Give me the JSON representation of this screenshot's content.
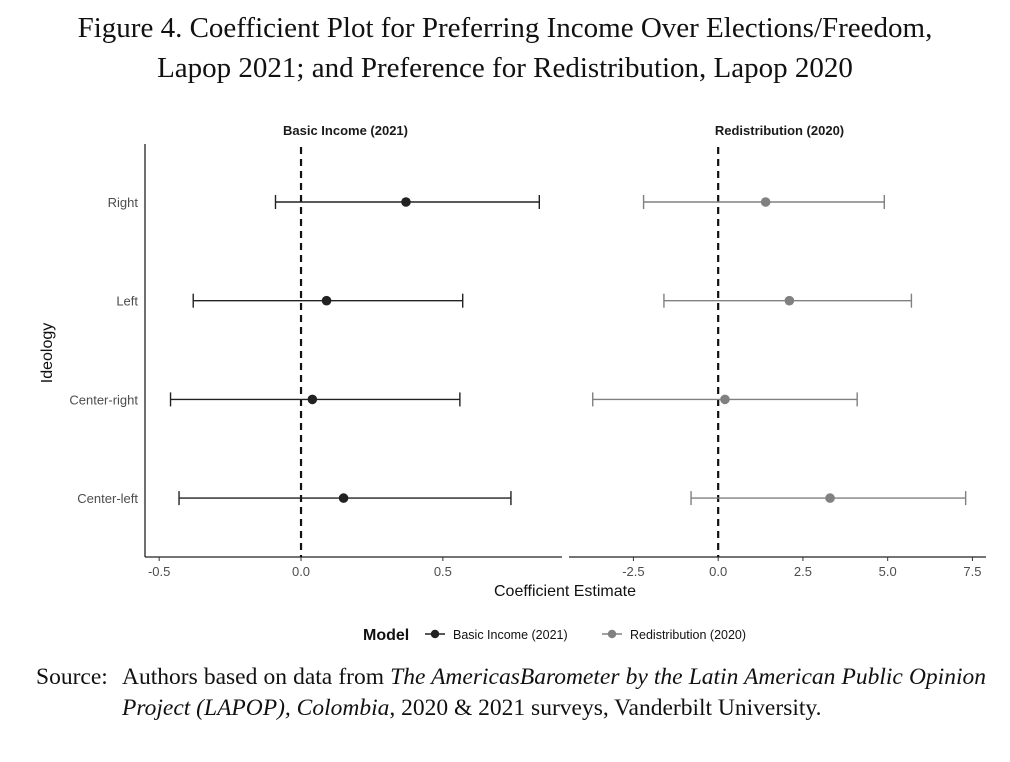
{
  "figure": {
    "title_line1": "Figure 4. Coefficient Plot for Preferring Income Over Elections/Freedom,",
    "title_line2": "Lapop 2021; and Preference for Redistribution, Lapop 2020"
  },
  "chart_data": {
    "type": "scatter",
    "subtype": "coefficient-plot",
    "xlabel": "Coefficient Estimate",
    "ylabel": "Ideology",
    "categories": [
      "Right",
      "Left",
      "Center-right",
      "Center-left"
    ],
    "legend": {
      "title": "Model",
      "position": "bottom",
      "entries": [
        "Basic Income (2021)",
        "Redistribution (2020)"
      ]
    },
    "panels": [
      {
        "title": "Basic Income (2021)",
        "color": "#222222",
        "xlim": [
          -0.55,
          0.92
        ],
        "xticks": [
          -0.5,
          0.0,
          0.5
        ],
        "xtick_labels": [
          "-0.5",
          "0.0",
          "0.5"
        ],
        "reference_line": 0,
        "points": [
          {
            "category": "Right",
            "estimate": 0.37,
            "low": -0.09,
            "high": 0.84
          },
          {
            "category": "Left",
            "estimate": 0.09,
            "low": -0.38,
            "high": 0.57
          },
          {
            "category": "Center-right",
            "estimate": 0.04,
            "low": -0.46,
            "high": 0.56
          },
          {
            "category": "Center-left",
            "estimate": 0.15,
            "low": -0.43,
            "high": 0.74
          }
        ]
      },
      {
        "title": "Redistribution (2020)",
        "color": "#808080",
        "xlim": [
          -4.4,
          7.9
        ],
        "xticks": [
          -2.5,
          0.0,
          2.5,
          5.0,
          7.5
        ],
        "xtick_labels": [
          "-2.5",
          "0.0",
          "2.5",
          "5.0",
          "7.5"
        ],
        "reference_line": 0,
        "points": [
          {
            "category": "Right",
            "estimate": 1.4,
            "low": -2.2,
            "high": 4.9
          },
          {
            "category": "Left",
            "estimate": 2.1,
            "low": -1.6,
            "high": 5.7
          },
          {
            "category": "Center-right",
            "estimate": 0.2,
            "low": -3.7,
            "high": 4.1
          },
          {
            "category": "Center-left",
            "estimate": 3.3,
            "low": -0.8,
            "high": 7.3
          }
        ]
      }
    ]
  },
  "source": {
    "label": "Source:",
    "text_before": "Authors based on data from ",
    "text_italic": "The AmericasBarometer by the Latin American Public Opinion Project (LAPOP), Colombia",
    "text_after": ", 2020 & 2021 surveys, Vanderbilt University."
  }
}
